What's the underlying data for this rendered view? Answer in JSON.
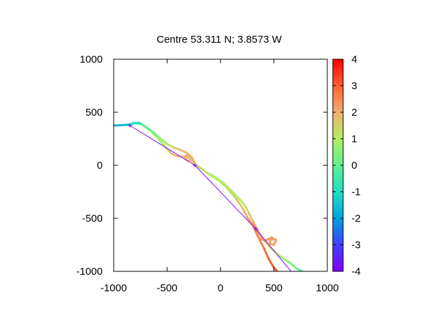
{
  "chart_data": {
    "type": "line",
    "title": "Centre 53.311 N; 3.8573  W",
    "xlabel": "",
    "ylabel": "",
    "xlim": [
      -1000,
      1000
    ],
    "ylim": [
      -1000,
      1000
    ],
    "x_ticks": [
      -1000,
      -500,
      0,
      500,
      1000
    ],
    "y_ticks": [
      -1000,
      -500,
      0,
      500,
      1000
    ],
    "x_tick_labels": [
      "-1000",
      "-500",
      "0",
      "500",
      "1000"
    ],
    "y_tick_labels": [
      "-1000",
      "-500",
      "0",
      "500",
      "1000"
    ],
    "grid": false,
    "colorbar": {
      "range": [
        -4,
        4
      ],
      "ticks": [
        -4,
        -3,
        -2,
        -1,
        0,
        1,
        2,
        3,
        4
      ],
      "tick_labels": [
        "-4",
        "-3",
        "-2",
        "-1",
        "0",
        "1",
        "2",
        "3",
        "4"
      ],
      "palette": "rainbow"
    },
    "series": [
      {
        "style": "colored-track",
        "points": [
          {
            "x": -1000,
            "y": 375,
            "c": -1.8
          },
          {
            "x": -900,
            "y": 380,
            "c": -1.6
          },
          {
            "x": -840,
            "y": 385,
            "c": -1.4
          },
          {
            "x": -800,
            "y": 400,
            "c": -1.0
          },
          {
            "x": -760,
            "y": 400,
            "c": -0.9
          },
          {
            "x": -700,
            "y": 360,
            "c": -0.7
          },
          {
            "x": -640,
            "y": 320,
            "c": -0.3
          },
          {
            "x": -570,
            "y": 260,
            "c": 0.5
          },
          {
            "x": -500,
            "y": 200,
            "c": 0.9
          },
          {
            "x": -440,
            "y": 170,
            "c": 1.4
          },
          {
            "x": -380,
            "y": 145,
            "c": 1.8
          },
          {
            "x": -320,
            "y": 120,
            "c": 2.0
          },
          {
            "x": -270,
            "y": 80,
            "c": 1.9
          },
          {
            "x": -230,
            "y": 0,
            "c": 1.5
          },
          {
            "x": -170,
            "y": -40,
            "c": 1.2
          },
          {
            "x": -110,
            "y": -80,
            "c": 0.9
          },
          {
            "x": -50,
            "y": -110,
            "c": 0.8
          },
          {
            "x": 30,
            "y": -170,
            "c": 0.8
          },
          {
            "x": 100,
            "y": -240,
            "c": 0.9
          },
          {
            "x": 170,
            "y": -310,
            "c": 1.0
          },
          {
            "x": 230,
            "y": -380,
            "c": 1.2
          },
          {
            "x": 270,
            "y": -460,
            "c": 1.4
          },
          {
            "x": 310,
            "y": -540,
            "c": 1.9
          },
          {
            "x": 340,
            "y": -600,
            "c": 2.5
          },
          {
            "x": 370,
            "y": -660,
            "c": 2.4
          },
          {
            "x": 420,
            "y": -720,
            "c": 2.0
          },
          {
            "x": 480,
            "y": -790,
            "c": 1.4
          },
          {
            "x": 560,
            "y": -860,
            "c": 0.9
          },
          {
            "x": 650,
            "y": -920,
            "c": 0.4
          },
          {
            "x": 720,
            "y": -980,
            "c": 0.0
          },
          {
            "x": 770,
            "y": -1000,
            "c": -0.2
          }
        ]
      },
      {
        "style": "colored-track",
        "points": [
          {
            "x": -820,
            "y": 400,
            "c": -1.2
          },
          {
            "x": -740,
            "y": 390,
            "c": -0.6
          },
          {
            "x": -660,
            "y": 330,
            "c": 0.2
          },
          {
            "x": -590,
            "y": 260,
            "c": 0.8
          },
          {
            "x": -530,
            "y": 190,
            "c": 1.1
          },
          {
            "x": -470,
            "y": 120,
            "c": 1.6
          },
          {
            "x": -420,
            "y": 90,
            "c": 1.8
          },
          {
            "x": -340,
            "y": 80,
            "c": 2.0
          },
          {
            "x": -300,
            "y": 100,
            "c": 2.1
          },
          {
            "x": -270,
            "y": 60,
            "c": 2.0
          },
          {
            "x": -300,
            "y": 40,
            "c": 1.9
          },
          {
            "x": -330,
            "y": 60,
            "c": 1.9
          },
          {
            "x": -300,
            "y": 80,
            "c": 2.0
          },
          {
            "x": -250,
            "y": 20,
            "c": 1.6
          },
          {
            "x": -180,
            "y": -30,
            "c": 1.3
          },
          {
            "x": -100,
            "y": -90,
            "c": 1.0
          },
          {
            "x": -20,
            "y": -140,
            "c": 1.0
          },
          {
            "x": 60,
            "y": -210,
            "c": 1.2
          },
          {
            "x": 150,
            "y": -320,
            "c": 1.5
          },
          {
            "x": 210,
            "y": -410,
            "c": 1.8
          },
          {
            "x": 250,
            "y": -490,
            "c": 2.2
          },
          {
            "x": 300,
            "y": -560,
            "c": 2.5
          },
          {
            "x": 320,
            "y": -600,
            "c": 2.6
          },
          {
            "x": 340,
            "y": -650,
            "c": 2.6
          },
          {
            "x": 370,
            "y": -710,
            "c": 2.5
          },
          {
            "x": 410,
            "y": -790,
            "c": 2.8
          },
          {
            "x": 450,
            "y": -880,
            "c": 3.0
          },
          {
            "x": 490,
            "y": -950,
            "c": 3.1
          },
          {
            "x": 530,
            "y": -1000,
            "c": 3.2
          }
        ]
      },
      {
        "style": "colored-track",
        "points": [
          {
            "x": 360,
            "y": -690,
            "c": 2.4
          },
          {
            "x": 420,
            "y": -710,
            "c": 2.4
          },
          {
            "x": 480,
            "y": -680,
            "c": 2.3
          },
          {
            "x": 520,
            "y": -710,
            "c": 2.2
          },
          {
            "x": 500,
            "y": -750,
            "c": 2.2
          },
          {
            "x": 460,
            "y": -740,
            "c": 2.2
          },
          {
            "x": 470,
            "y": -700,
            "c": 2.3
          },
          {
            "x": 520,
            "y": -700,
            "c": 2.2
          }
        ]
      },
      {
        "style": "straight-line",
        "color": "#8000ff",
        "points": [
          {
            "x": -850,
            "y": 375
          },
          {
            "x": -240,
            "y": 0
          },
          {
            "x": 330,
            "y": -600
          },
          {
            "x": 660,
            "y": -1000
          }
        ],
        "markers": [
          {
            "x": -850,
            "y": 375
          },
          {
            "x": -240,
            "y": 0
          },
          {
            "x": 330,
            "y": -600
          }
        ]
      }
    ]
  }
}
